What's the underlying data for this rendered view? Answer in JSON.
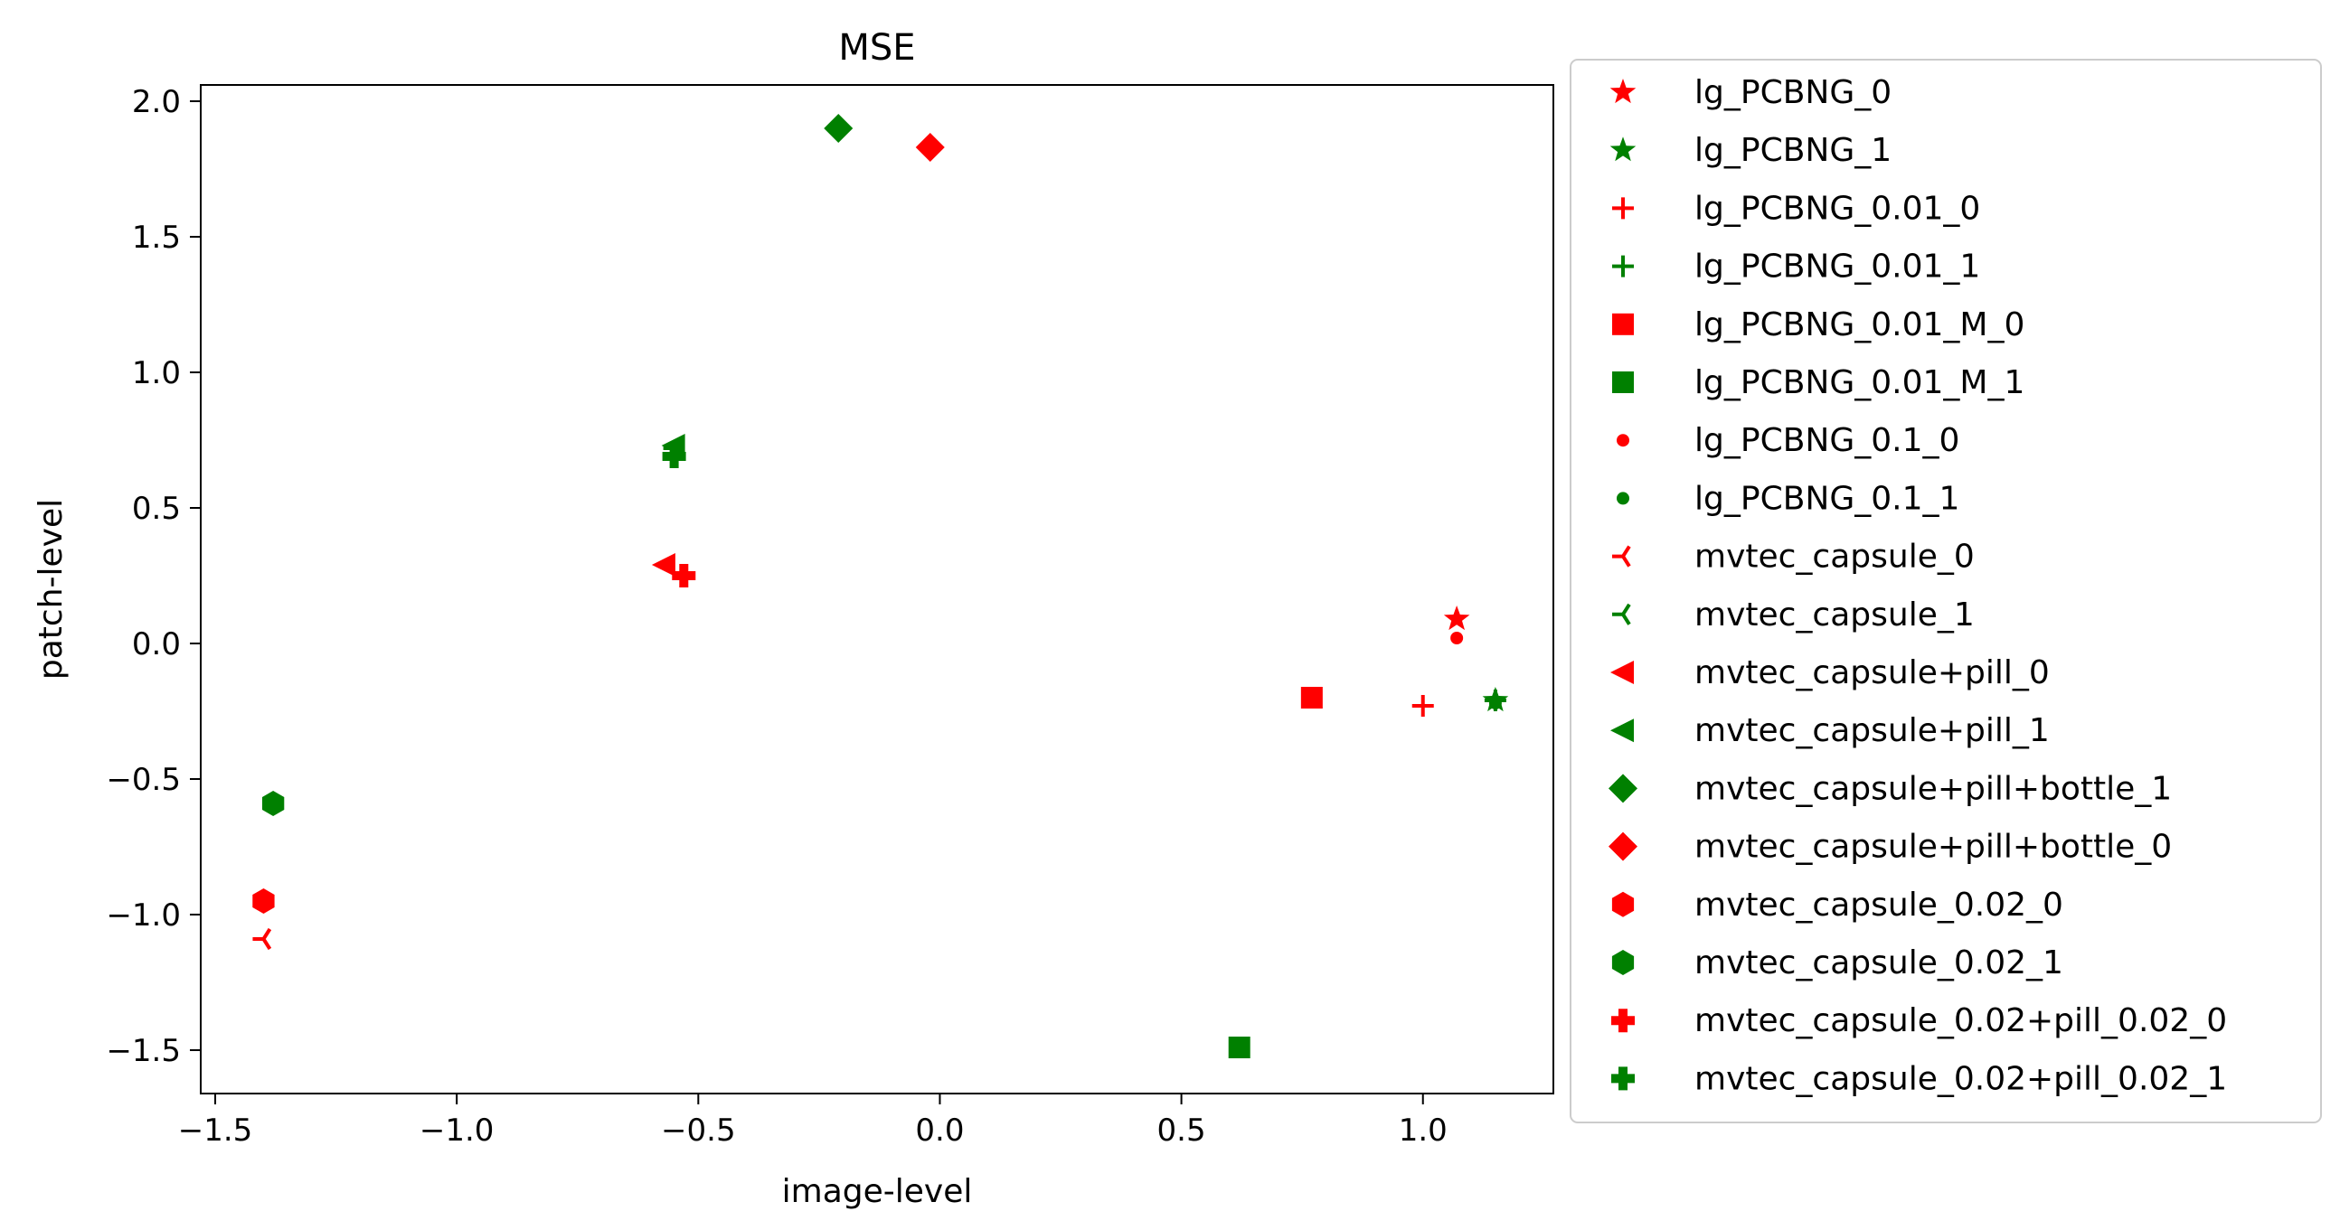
{
  "colors": {
    "red": "#ff0000",
    "green": "#008000",
    "axis": "#000000",
    "legend_border": "#cccccc"
  },
  "chart_data": {
    "type": "scatter",
    "title": "MSE",
    "xlabel": "image-level",
    "ylabel": "patch-level",
    "xlim": [
      -1.53,
      1.27
    ],
    "ylim": [
      -1.66,
      2.06
    ],
    "x_ticks": [
      -1.5,
      -1.0,
      -0.5,
      0.0,
      0.5,
      1.0
    ],
    "x_tick_labels": [
      "−1.5",
      "−1.0",
      "−0.5",
      "0.0",
      "0.5",
      "1.0"
    ],
    "y_ticks": [
      2.0,
      1.5,
      1.0,
      0.5,
      0.0,
      -0.5,
      -1.0,
      -1.5
    ],
    "y_tick_labels": [
      "2.0",
      "1.5",
      "1.0",
      "0.5",
      "0.0",
      "−0.5",
      "−1.0",
      "−1.5"
    ],
    "grid": false,
    "legend_placement": "outside right",
    "series": [
      {
        "name": "lg_PCBNG_0",
        "marker": "star",
        "color": "red",
        "points": [
          [
            1.07,
            0.09
          ]
        ]
      },
      {
        "name": "lg_PCBNG_1",
        "marker": "star",
        "color": "green",
        "points": [
          [
            1.15,
            -0.21
          ]
        ]
      },
      {
        "name": "lg_PCBNG_0.01_0",
        "marker": "plus",
        "color": "red",
        "points": [
          [
            1.0,
            -0.23
          ]
        ]
      },
      {
        "name": "lg_PCBNG_0.01_1",
        "marker": "plus",
        "color": "green",
        "points": [
          [
            1.15,
            -0.21
          ]
        ]
      },
      {
        "name": "lg_PCBNG_0.01_M_0",
        "marker": "square",
        "color": "red",
        "points": [
          [
            0.77,
            -0.2
          ]
        ]
      },
      {
        "name": "lg_PCBNG_0.01_M_1",
        "marker": "square",
        "color": "green",
        "points": [
          [
            0.62,
            -1.49
          ]
        ]
      },
      {
        "name": "lg_PCBNG_0.1_0",
        "marker": "point",
        "color": "red",
        "points": [
          [
            1.07,
            0.02
          ]
        ]
      },
      {
        "name": "lg_PCBNG_0.1_1",
        "marker": "point",
        "color": "green",
        "points": [
          [
            1.15,
            -0.22
          ]
        ]
      },
      {
        "name": "mvtec_capsule_0",
        "marker": "tri_left",
        "color": "red",
        "points": [
          [
            -1.4,
            -1.09
          ]
        ]
      },
      {
        "name": "mvtec_capsule_1",
        "marker": "tri_left",
        "color": "green",
        "points": [
          [
            -0.55,
            0.72
          ]
        ]
      },
      {
        "name": "mvtec_capsule+pill_0",
        "marker": "triangle_left",
        "color": "red",
        "points": [
          [
            -0.57,
            0.29
          ]
        ]
      },
      {
        "name": "mvtec_capsule+pill_1",
        "marker": "triangle_left",
        "color": "green",
        "points": [
          [
            -0.55,
            0.73
          ]
        ]
      },
      {
        "name": "mvtec_capsule+pill+bottle_1",
        "marker": "diamond",
        "color": "green",
        "points": [
          [
            -0.21,
            1.9
          ]
        ]
      },
      {
        "name": "mvtec_capsule+pill+bottle_0",
        "marker": "diamond",
        "color": "red",
        "points": [
          [
            -0.02,
            1.83
          ]
        ]
      },
      {
        "name": "mvtec_capsule_0.02_0",
        "marker": "hexagon",
        "color": "red",
        "points": [
          [
            -1.4,
            -0.95
          ]
        ]
      },
      {
        "name": "mvtec_capsule_0.02_1",
        "marker": "hexagon",
        "color": "green",
        "points": [
          [
            -1.38,
            -0.59
          ]
        ]
      },
      {
        "name": "mvtec_capsule_0.02+pill_0.02_0",
        "marker": "plus_filled",
        "color": "red",
        "points": [
          [
            -0.53,
            0.25
          ]
        ]
      },
      {
        "name": "mvtec_capsule_0.02+pill_0.02_1",
        "marker": "plus_filled",
        "color": "green",
        "points": [
          [
            -0.55,
            0.69
          ]
        ]
      }
    ]
  }
}
